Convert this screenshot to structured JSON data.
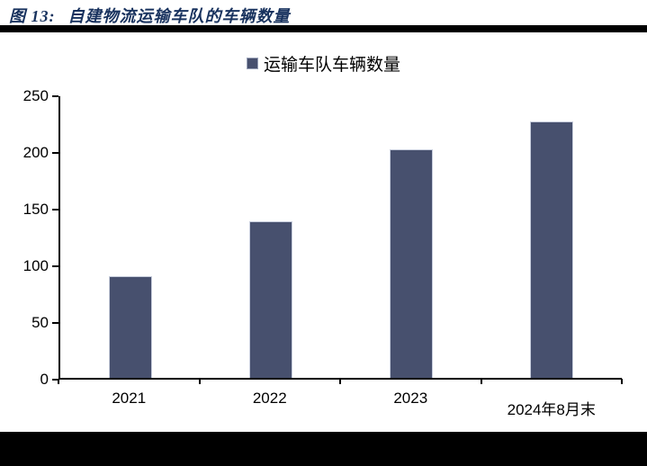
{
  "header": {
    "figure_label": "图 13:",
    "title": "自建物流运输车队的车辆数量"
  },
  "legend": {
    "label": "运输车队车辆数量"
  },
  "colors": {
    "bar": "#47506E",
    "bar_border": "#C7CDDC",
    "title_text": "#18325E",
    "axis": "#000000",
    "rule": "#000000"
  },
  "chart_data": {
    "type": "bar",
    "title": "自建物流运输车队的车辆数量",
    "categories": [
      "2021",
      "2022",
      "2023",
      "2024年8月末"
    ],
    "series": [
      {
        "name": "运输车队车辆数量",
        "values": [
          90,
          139,
          203,
          228
        ]
      }
    ],
    "ylim": [
      0,
      250
    ],
    "yticks": [
      0,
      50,
      100,
      150,
      200,
      250
    ],
    "xlabel": "",
    "ylabel": "",
    "grid": false,
    "legend_position": "top-center"
  }
}
